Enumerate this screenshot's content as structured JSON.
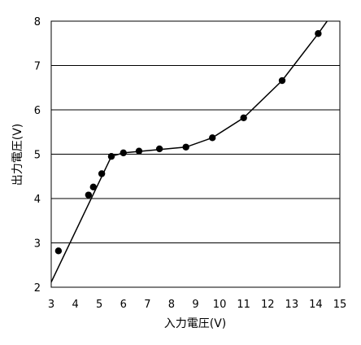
{
  "chart_data": {
    "type": "line",
    "xlabel": "入力電圧(V)",
    "ylabel": "出力電圧(V)",
    "xlim": [
      3,
      15
    ],
    "ylim": [
      2,
      8
    ],
    "x_ticks": [
      "3",
      "4",
      "5",
      "6",
      "7",
      "8",
      "9",
      "10",
      "11",
      "12",
      "13",
      "14",
      "15"
    ],
    "y_ticks": [
      "2",
      "3",
      "4",
      "5",
      "6",
      "7",
      "8"
    ],
    "grid": "horizontal",
    "series": [
      {
        "markers": true,
        "points": [
          [
            3.3,
            2.82
          ],
          [
            4.55,
            4.08
          ],
          [
            4.75,
            4.26
          ],
          [
            5.1,
            4.56
          ],
          [
            5.5,
            4.95
          ],
          [
            6.0,
            5.03
          ],
          [
            6.65,
            5.07
          ],
          [
            7.5,
            5.12
          ],
          [
            8.6,
            5.16
          ],
          [
            9.7,
            5.37
          ],
          [
            11.0,
            5.82
          ],
          [
            12.6,
            6.66
          ],
          [
            14.1,
            7.72
          ]
        ],
        "line": [
          [
            2.9,
            2.0
          ],
          [
            5.5,
            4.95
          ],
          [
            6.0,
            5.03
          ],
          [
            8.6,
            5.16
          ],
          [
            9.7,
            5.37
          ],
          [
            11.0,
            5.82
          ],
          [
            12.6,
            6.66
          ],
          [
            14.1,
            7.72
          ],
          [
            14.6,
            8.1
          ]
        ]
      }
    ]
  }
}
